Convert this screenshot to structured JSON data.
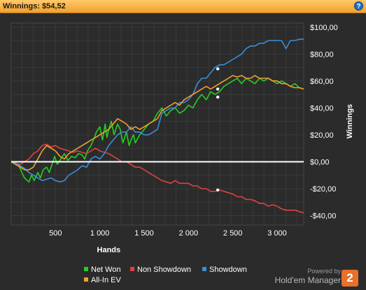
{
  "header": {
    "title": "Winnings:",
    "amount": "$54,52"
  },
  "help_label": "?",
  "footer": {
    "powered_by": "Powered by",
    "brand": "Hold'em Manager",
    "logo": "2"
  },
  "colors": {
    "background": "#2b2b2b",
    "grid": "#3a3a3a",
    "zero_line": "#ffffff",
    "net_won": "#22d022",
    "non_showdown": "#e04040",
    "showdown": "#3a8ed8",
    "all_in_ev": "#f0a030",
    "header": "#f5b041"
  },
  "chart_data": {
    "type": "line",
    "title": "",
    "xlabel": "Hands",
    "ylabel": "Winnings",
    "xlim": [
      0,
      3300
    ],
    "ylim": [
      -47,
      103
    ],
    "grid": true,
    "legend_position": "bottom",
    "x_ticks": [
      500,
      1000,
      1500,
      2000,
      2500,
      3000
    ],
    "x_tick_labels": [
      "500",
      "1 000",
      "1 500",
      "2 000",
      "2 500",
      "3 000"
    ],
    "y_ticks": [
      -40,
      -20,
      0,
      20,
      40,
      60,
      80,
      100
    ],
    "y_tick_labels": [
      "-$40,00",
      "-$20,00",
      "$0,00",
      "$20,00",
      "$40,00",
      "$60,00",
      "$80,00",
      "$100,00"
    ],
    "series": [
      {
        "name": "Net Won",
        "color": "#22d022",
        "x": [
          0,
          80,
          120,
          150,
          200,
          230,
          260,
          300,
          330,
          360,
          400,
          430,
          460,
          490,
          520,
          560,
          600,
          640,
          680,
          720,
          760,
          800,
          830,
          860,
          900,
          940,
          960,
          1000,
          1030,
          1060,
          1080,
          1100,
          1130,
          1160,
          1200,
          1230,
          1260,
          1300,
          1330,
          1350,
          1380,
          1400,
          1450,
          1500,
          1550,
          1600,
          1650,
          1700,
          1750,
          1800,
          1850,
          1900,
          1950,
          2000,
          2050,
          2100,
          2150,
          2200,
          2250,
          2300,
          2350,
          2400,
          2450,
          2500,
          2550,
          2600,
          2650,
          2700,
          2750,
          2800,
          2850,
          2900,
          2950,
          3000,
          3050,
          3100,
          3150,
          3200,
          3250,
          3300
        ],
        "y": [
          0,
          -2,
          -8,
          -12,
          -15,
          -10,
          -14,
          -8,
          -12,
          -6,
          -4,
          -8,
          -2,
          4,
          -2,
          2,
          6,
          1,
          4,
          3,
          6,
          5,
          2,
          8,
          12,
          18,
          22,
          26,
          16,
          28,
          18,
          24,
          30,
          20,
          28,
          24,
          14,
          22,
          12,
          16,
          20,
          14,
          20,
          24,
          28,
          30,
          36,
          40,
          34,
          38,
          40,
          36,
          38,
          42,
          40,
          46,
          50,
          46,
          52,
          50,
          52,
          56,
          58,
          60,
          62,
          58,
          62,
          60,
          58,
          62,
          60,
          62,
          60,
          58,
          60,
          58,
          56,
          58,
          55,
          54
        ]
      },
      {
        "name": "Non Showdown",
        "color": "#e04040",
        "x": [
          0,
          50,
          100,
          150,
          200,
          250,
          300,
          350,
          400,
          450,
          500,
          550,
          600,
          650,
          700,
          750,
          800,
          850,
          900,
          950,
          1000,
          1050,
          1100,
          1150,
          1200,
          1250,
          1300,
          1350,
          1400,
          1450,
          1500,
          1550,
          1600,
          1650,
          1700,
          1750,
          1800,
          1850,
          1900,
          1950,
          2000,
          2050,
          2100,
          2150,
          2200,
          2250,
          2300,
          2350,
          2400,
          2450,
          2500,
          2550,
          2600,
          2650,
          2700,
          2750,
          2800,
          2850,
          2900,
          2950,
          3000,
          3050,
          3100,
          3150,
          3200,
          3250,
          3300
        ],
        "y": [
          0,
          -1,
          -2,
          0,
          2,
          6,
          8,
          12,
          13,
          11,
          12,
          10,
          9,
          8,
          7,
          8,
          7,
          6,
          8,
          10,
          8,
          7,
          6,
          4,
          2,
          0,
          0,
          -2,
          -4,
          -4,
          -6,
          -8,
          -10,
          -12,
          -14,
          -15,
          -16,
          -14,
          -16,
          -16,
          -16,
          -18,
          -18,
          -20,
          -20,
          -22,
          -22,
          -21,
          -22,
          -23,
          -24,
          -26,
          -26,
          -28,
          -28,
          -29,
          -31,
          -31,
          -33,
          -32,
          -33,
          -35,
          -36,
          -36,
          -36,
          -37,
          -38
        ]
      },
      {
        "name": "Showdown",
        "color": "#3a8ed8",
        "x": [
          0,
          50,
          100,
          150,
          200,
          250,
          300,
          350,
          400,
          450,
          500,
          550,
          600,
          650,
          700,
          750,
          800,
          850,
          900,
          950,
          1000,
          1050,
          1100,
          1150,
          1200,
          1250,
          1300,
          1350,
          1400,
          1450,
          1500,
          1550,
          1600,
          1650,
          1700,
          1750,
          1800,
          1850,
          1900,
          1950,
          2000,
          2050,
          2100,
          2150,
          2200,
          2250,
          2300,
          2350,
          2400,
          2450,
          2500,
          2550,
          2600,
          2650,
          2700,
          2750,
          2800,
          2850,
          2900,
          2950,
          3000,
          3050,
          3100,
          3150,
          3200,
          3250,
          3300
        ],
        "y": [
          0,
          -1,
          -3,
          -5,
          -8,
          -10,
          -12,
          -14,
          -13,
          -12,
          -14,
          -15,
          -14,
          -10,
          -8,
          -6,
          -3,
          -4,
          2,
          4,
          2,
          6,
          12,
          16,
          20,
          22,
          22,
          26,
          22,
          22,
          20,
          20,
          22,
          24,
          36,
          38,
          40,
          40,
          44,
          44,
          46,
          50,
          58,
          62,
          62,
          66,
          70,
          72,
          72,
          74,
          76,
          78,
          80,
          84,
          86,
          86,
          88,
          88,
          90,
          90,
          90,
          90,
          84,
          90,
          90,
          91,
          91
        ]
      },
      {
        "name": "All-In EV",
        "color": "#f0a030",
        "x": [
          0,
          50,
          100,
          150,
          200,
          250,
          300,
          350,
          400,
          450,
          500,
          550,
          600,
          650,
          700,
          750,
          800,
          850,
          900,
          950,
          1000,
          1050,
          1100,
          1150,
          1200,
          1250,
          1300,
          1350,
          1400,
          1450,
          1500,
          1550,
          1600,
          1650,
          1700,
          1750,
          1800,
          1850,
          1900,
          1950,
          2000,
          2050,
          2100,
          2150,
          2200,
          2250,
          2300,
          2350,
          2400,
          2450,
          2500,
          2550,
          2600,
          2650,
          2700,
          2750,
          2800,
          2850,
          2900,
          2950,
          3000,
          3050,
          3100,
          3150,
          3200,
          3250,
          3300
        ],
        "y": [
          0,
          -2,
          -4,
          -6,
          -6,
          -4,
          2,
          8,
          12,
          10,
          8,
          4,
          2,
          6,
          8,
          10,
          12,
          14,
          16,
          18,
          20,
          22,
          24,
          28,
          32,
          30,
          28,
          24,
          26,
          24,
          26,
          28,
          30,
          32,
          38,
          40,
          42,
          44,
          42,
          46,
          48,
          50,
          52,
          54,
          56,
          54,
          56,
          58,
          60,
          62,
          64,
          63,
          64,
          62,
          62,
          64,
          62,
          62,
          62,
          60,
          60,
          58,
          58,
          56,
          55,
          55,
          54
        ]
      }
    ],
    "markers": [
      {
        "series": "Showdown",
        "x": 2330,
        "y": 69
      },
      {
        "series": "All-In EV",
        "x": 2330,
        "y": 54
      },
      {
        "series": "Net Won",
        "x": 2330,
        "y": 48
      },
      {
        "series": "Non Showdown",
        "x": 2330,
        "y": -21
      }
    ]
  },
  "legend": {
    "items": [
      {
        "label": "Net Won",
        "color": "#22d022"
      },
      {
        "label": "Non Showdown",
        "color": "#e04040"
      },
      {
        "label": "Showdown",
        "color": "#3a8ed8"
      },
      {
        "label": "All-In EV",
        "color": "#f0a030"
      }
    ]
  }
}
